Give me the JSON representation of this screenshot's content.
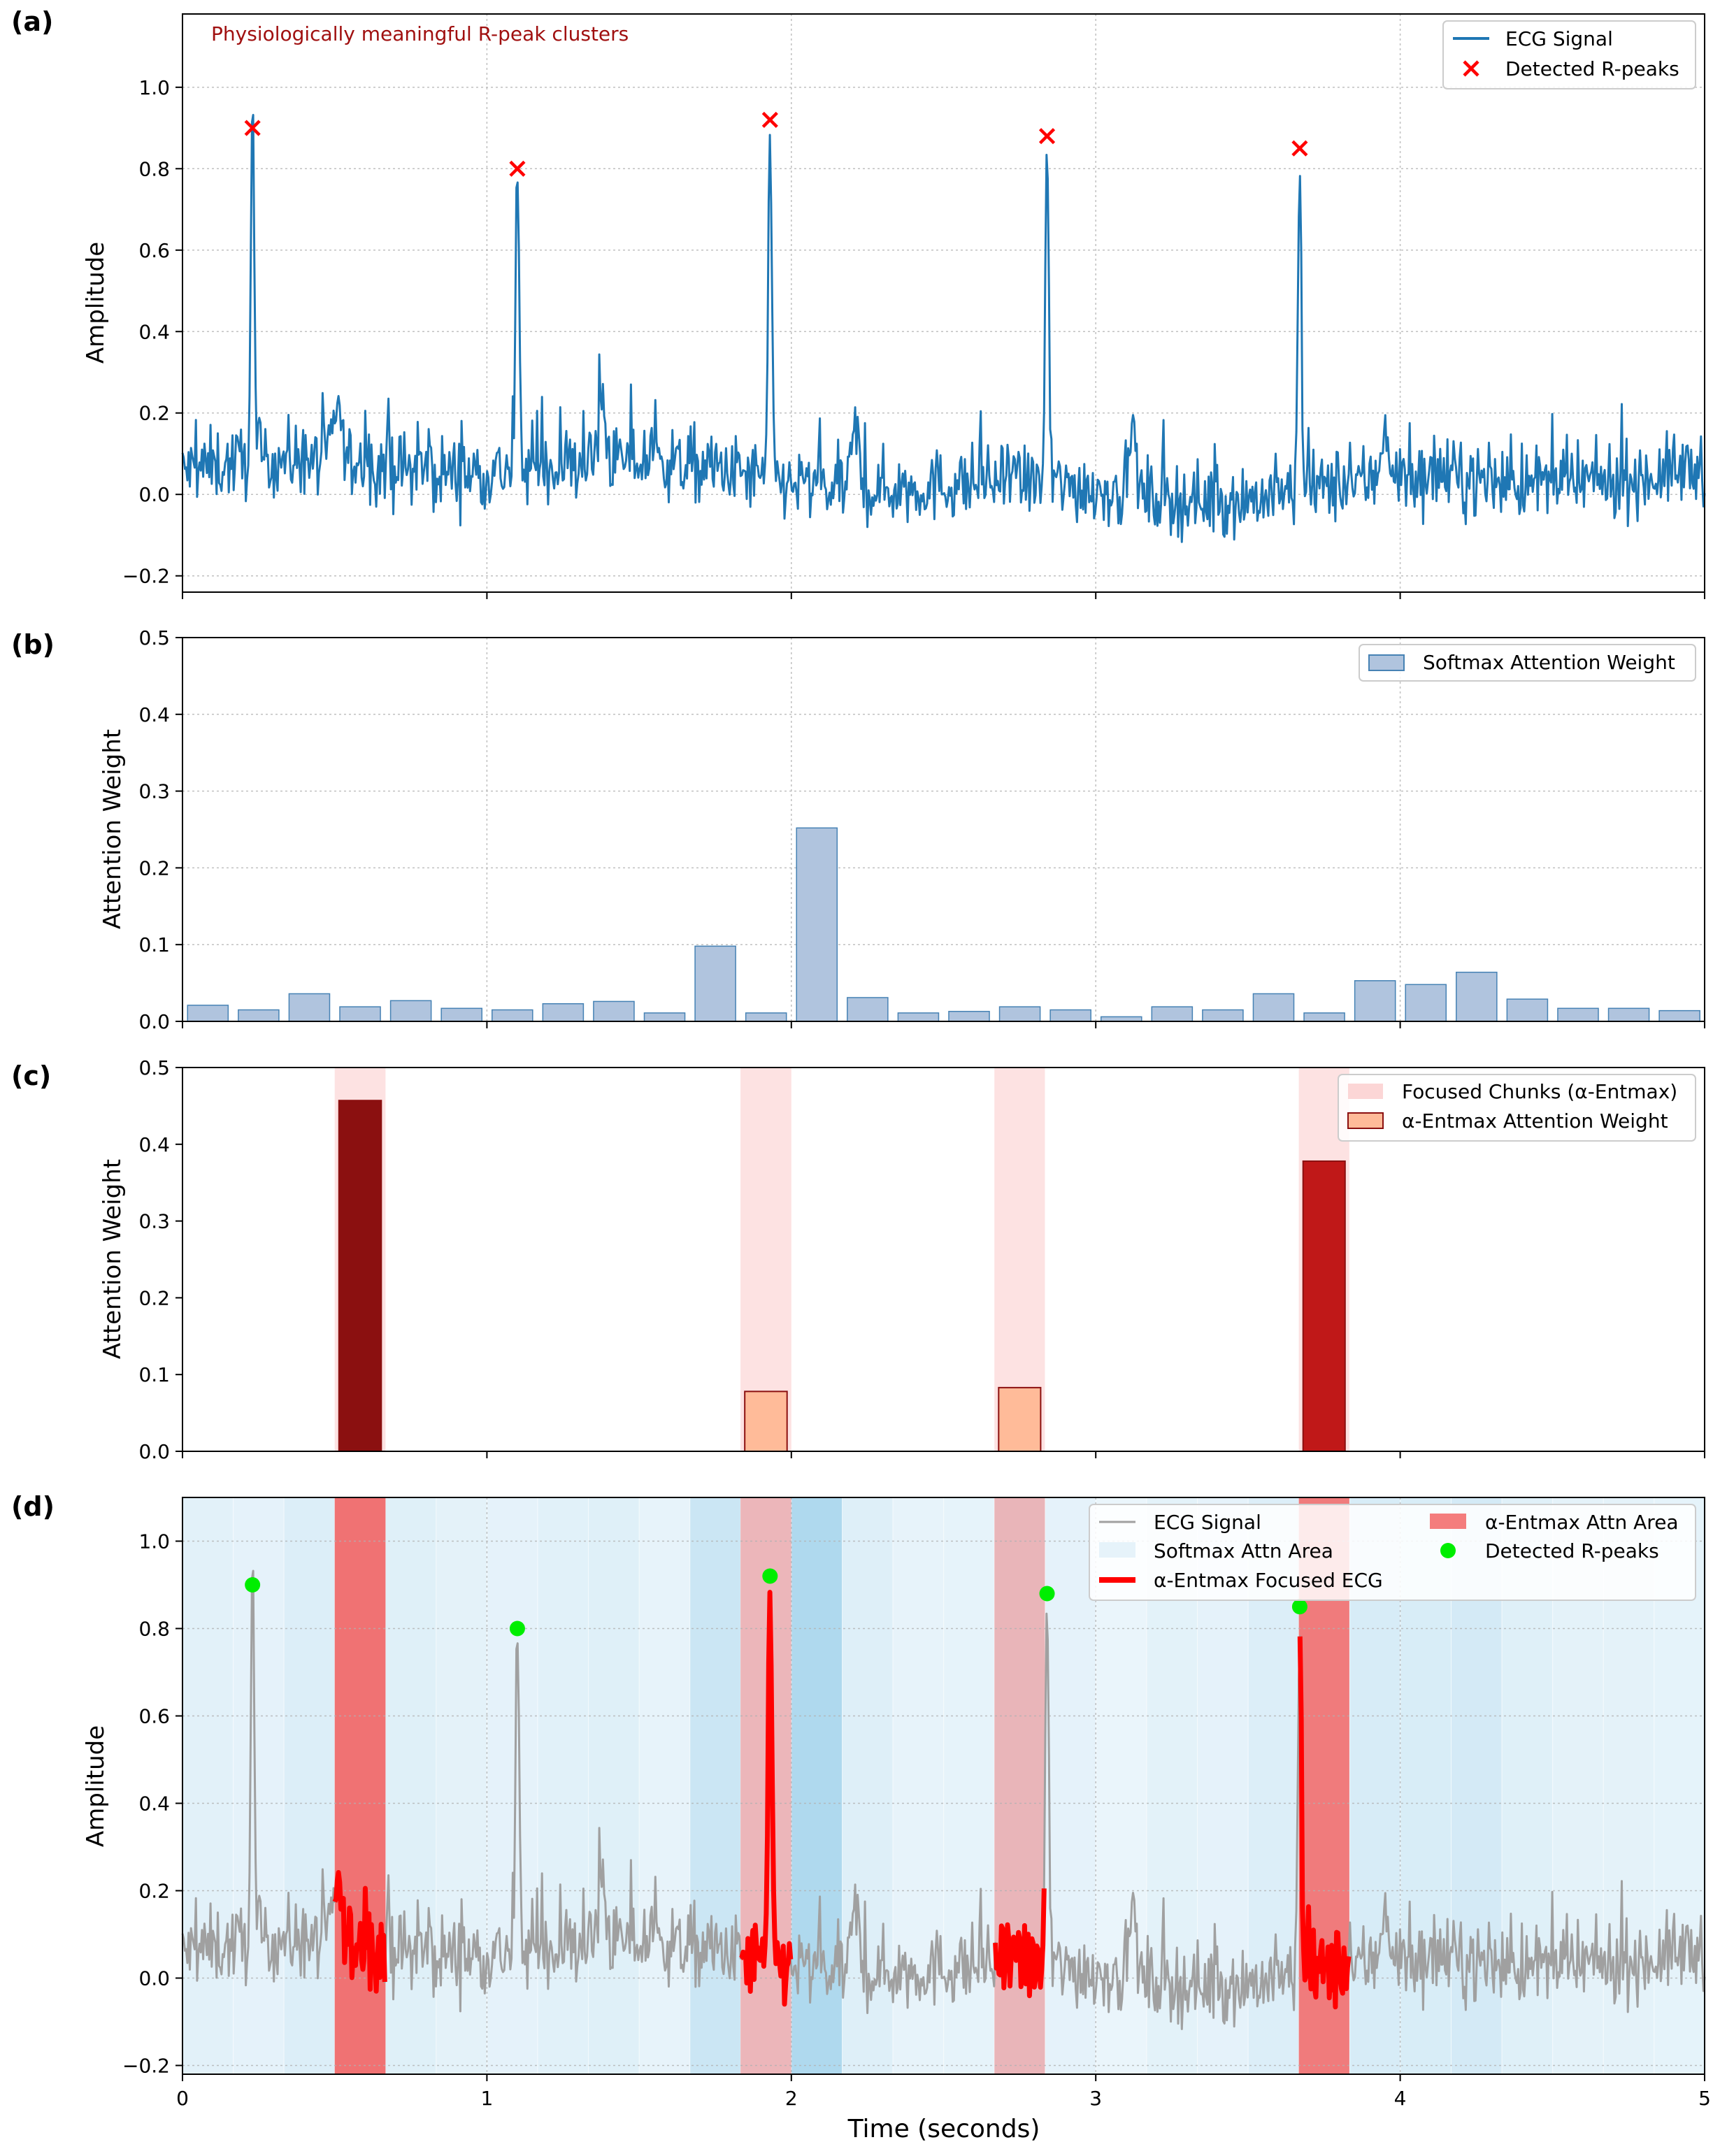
{
  "figure": {
    "xlabel": "Time (seconds)",
    "x_ticks": [
      "0",
      "1",
      "2",
      "3",
      "4",
      "5"
    ]
  },
  "colors": {
    "ecg_blue": "#1f77b4",
    "rpeak_red": "#ff0000",
    "softmax_bar": "#b0c4de",
    "softmax_edge": "#4682b4",
    "focus_pink": "#fcd6d6",
    "entmax_light": "#ffbb99",
    "entmax_dark": "#8b1010",
    "entmax_mid": "#c01818",
    "gray_ecg": "#a0a0a0",
    "focused_red": "#ff0000",
    "green_peak": "#00ee00",
    "annotation": "#a01010"
  },
  "chart_data": [
    {
      "panel": "(a)",
      "type": "line",
      "title": "",
      "annotation": "Physiologically meaningful R-peak clusters",
      "xlabel": "",
      "ylabel": "Amplitude",
      "xlim": [
        0,
        5
      ],
      "ylim": [
        -0.24,
        1.18
      ],
      "y_ticks": [
        "−0.2",
        "0.0",
        "0.2",
        "0.4",
        "0.6",
        "0.8",
        "1.0"
      ],
      "y_tick_values": [
        -0.2,
        0.0,
        0.2,
        0.4,
        0.6,
        0.8,
        1.0
      ],
      "grid": true,
      "legend": [
        "ECG Signal",
        "Detected R-peaks"
      ],
      "legend_position": "top-right",
      "series": [
        {
          "name": "ECG Signal",
          "kind": "noisy ECG, baseline ~0.05 with noise ±0.12"
        },
        {
          "name": "Detected R-peaks",
          "x": [
            0.23,
            1.1,
            1.93,
            2.84,
            3.67
          ],
          "y": [
            0.9,
            0.8,
            0.92,
            0.88,
            0.85
          ]
        }
      ]
    },
    {
      "panel": "(b)",
      "type": "bar",
      "ylabel": "Attention Weight",
      "xlim": [
        0,
        5
      ],
      "ylim": [
        0,
        0.5
      ],
      "y_ticks": [
        "0.0",
        "0.1",
        "0.2",
        "0.3",
        "0.4",
        "0.5"
      ],
      "y_tick_values": [
        0,
        0.1,
        0.2,
        0.3,
        0.4,
        0.5
      ],
      "grid": true,
      "legend": [
        "Softmax Attention Weight"
      ],
      "legend_position": "top-right",
      "chunk_width": 0.1667,
      "values": [
        0.021,
        0.015,
        0.036,
        0.019,
        0.027,
        0.017,
        0.015,
        0.023,
        0.026,
        0.011,
        0.098,
        0.011,
        0.252,
        0.031,
        0.011,
        0.013,
        0.019,
        0.015,
        0.006,
        0.019,
        0.015,
        0.036,
        0.011,
        0.053,
        0.048,
        0.064,
        0.029,
        0.017,
        0.017,
        0.014
      ]
    },
    {
      "panel": "(c)",
      "type": "bar",
      "ylabel": "Attention Weight",
      "xlim": [
        0,
        5
      ],
      "ylim": [
        0,
        0.5
      ],
      "y_ticks": [
        "0.0",
        "0.1",
        "0.2",
        "0.3",
        "0.4",
        "0.5"
      ],
      "y_tick_values": [
        0,
        0.1,
        0.2,
        0.3,
        0.4,
        0.5
      ],
      "grid": false,
      "legend": [
        "Focused Chunks (α-Entmax)",
        "α-Entmax Attention Weight"
      ],
      "legend_position": "top-right",
      "bars": [
        {
          "x_start": 0.5,
          "x_end": 0.667,
          "value": 0.457
        },
        {
          "x_start": 1.833,
          "x_end": 2.0,
          "value": 0.078
        },
        {
          "x_start": 2.667,
          "x_end": 2.833,
          "value": 0.083
        },
        {
          "x_start": 3.667,
          "x_end": 3.833,
          "value": 0.378
        }
      ]
    },
    {
      "panel": "(d)",
      "type": "line",
      "ylabel": "Amplitude",
      "xlabel": "Time (seconds)",
      "xlim": [
        0,
        5
      ],
      "ylim": [
        -0.22,
        1.1
      ],
      "y_ticks": [
        "−0.2",
        "0.0",
        "0.2",
        "0.4",
        "0.6",
        "0.8",
        "1.0"
      ],
      "y_tick_values": [
        -0.2,
        0.0,
        0.2,
        0.4,
        0.6,
        0.8,
        1.0
      ],
      "grid": true,
      "legend": [
        "ECG Signal",
        "Softmax Attn Area",
        "α-Entmax Focused ECG",
        "α-Entmax Attn Area",
        "Detected R-peaks"
      ],
      "legend_position": "top-right",
      "entmax_areas": [
        [
          0.5,
          0.667,
          0.457
        ],
        [
          1.833,
          2.0,
          0.078
        ],
        [
          2.667,
          2.833,
          0.083
        ],
        [
          3.667,
          3.833,
          0.378
        ]
      ],
      "r_peaks": {
        "x": [
          0.23,
          1.1,
          1.93,
          2.84,
          3.67
        ],
        "y": [
          0.9,
          0.8,
          0.92,
          0.88,
          0.85
        ]
      }
    }
  ]
}
